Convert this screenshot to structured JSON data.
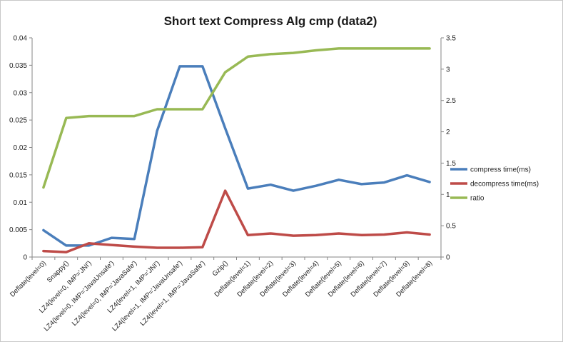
{
  "chart_data": {
    "type": "line",
    "title": "Short text Compress Alg cmp (data2)",
    "xlabel": "",
    "ylabel": "",
    "categories": [
      "Deflate(level=0)",
      "Snappy()",
      "LZ4(level=0, IMP='JNI')",
      "LZ4(level=0, IMP='JavaUnsafe')",
      "LZ4(level=0, IMP='JavaSafe')",
      "LZ4(level=1, IMP='JNI')",
      "LZ4(level=1, IMP='JavaUnsafe')",
      "LZ4(level=1, IMP='JavaSafe')",
      "Gzip()",
      "Deflate(level=1)",
      "Deflate(level=2)",
      "Deflate(level=3)",
      "Deflate(level=4)",
      "Deflate(level=5)",
      "Deflate(level=6)",
      "Deflate(level=7)",
      "Deflate(level=9)",
      "Deflate(level=8)"
    ],
    "ylim_left": [
      0,
      0.04
    ],
    "yticks_left": [
      "0",
      "0.005",
      "0.01",
      "0.015",
      "0.02",
      "0.025",
      "0.03",
      "0.035",
      "0.04"
    ],
    "ylim_right": [
      0,
      3.5
    ],
    "yticks_right": [
      "0",
      "0.5",
      "1",
      "1.5",
      "2",
      "2.5",
      "3",
      "3.5"
    ],
    "grid": false,
    "legend_position": "right",
    "series": [
      {
        "name": "compress time(ms)",
        "axis": "left",
        "color": "#4a7ebb",
        "values": [
          0.0049,
          0.0021,
          0.0021,
          0.0035,
          0.0033,
          0.023,
          0.0348,
          0.0348,
          0.0235,
          0.0125,
          0.0132,
          0.0121,
          0.013,
          0.0141,
          0.0133,
          0.0136,
          0.0149,
          0.0137
        ]
      },
      {
        "name": "decompress time(ms)",
        "axis": "left",
        "color": "#be4b48",
        "values": [
          0.0011,
          0.0009,
          0.0025,
          0.0022,
          0.0019,
          0.0017,
          0.0017,
          0.0018,
          0.0121,
          0.004,
          0.0043,
          0.0039,
          0.004,
          0.0043,
          0.004,
          0.0041,
          0.0045,
          0.0041
        ]
      },
      {
        "name": "ratio",
        "axis": "right",
        "color": "#98b954",
        "values": [
          1.11,
          2.22,
          2.25,
          2.25,
          2.25,
          2.36,
          2.36,
          2.36,
          2.95,
          3.2,
          3.24,
          3.26,
          3.3,
          3.33,
          3.33,
          3.33,
          3.33,
          3.33
        ]
      }
    ]
  }
}
